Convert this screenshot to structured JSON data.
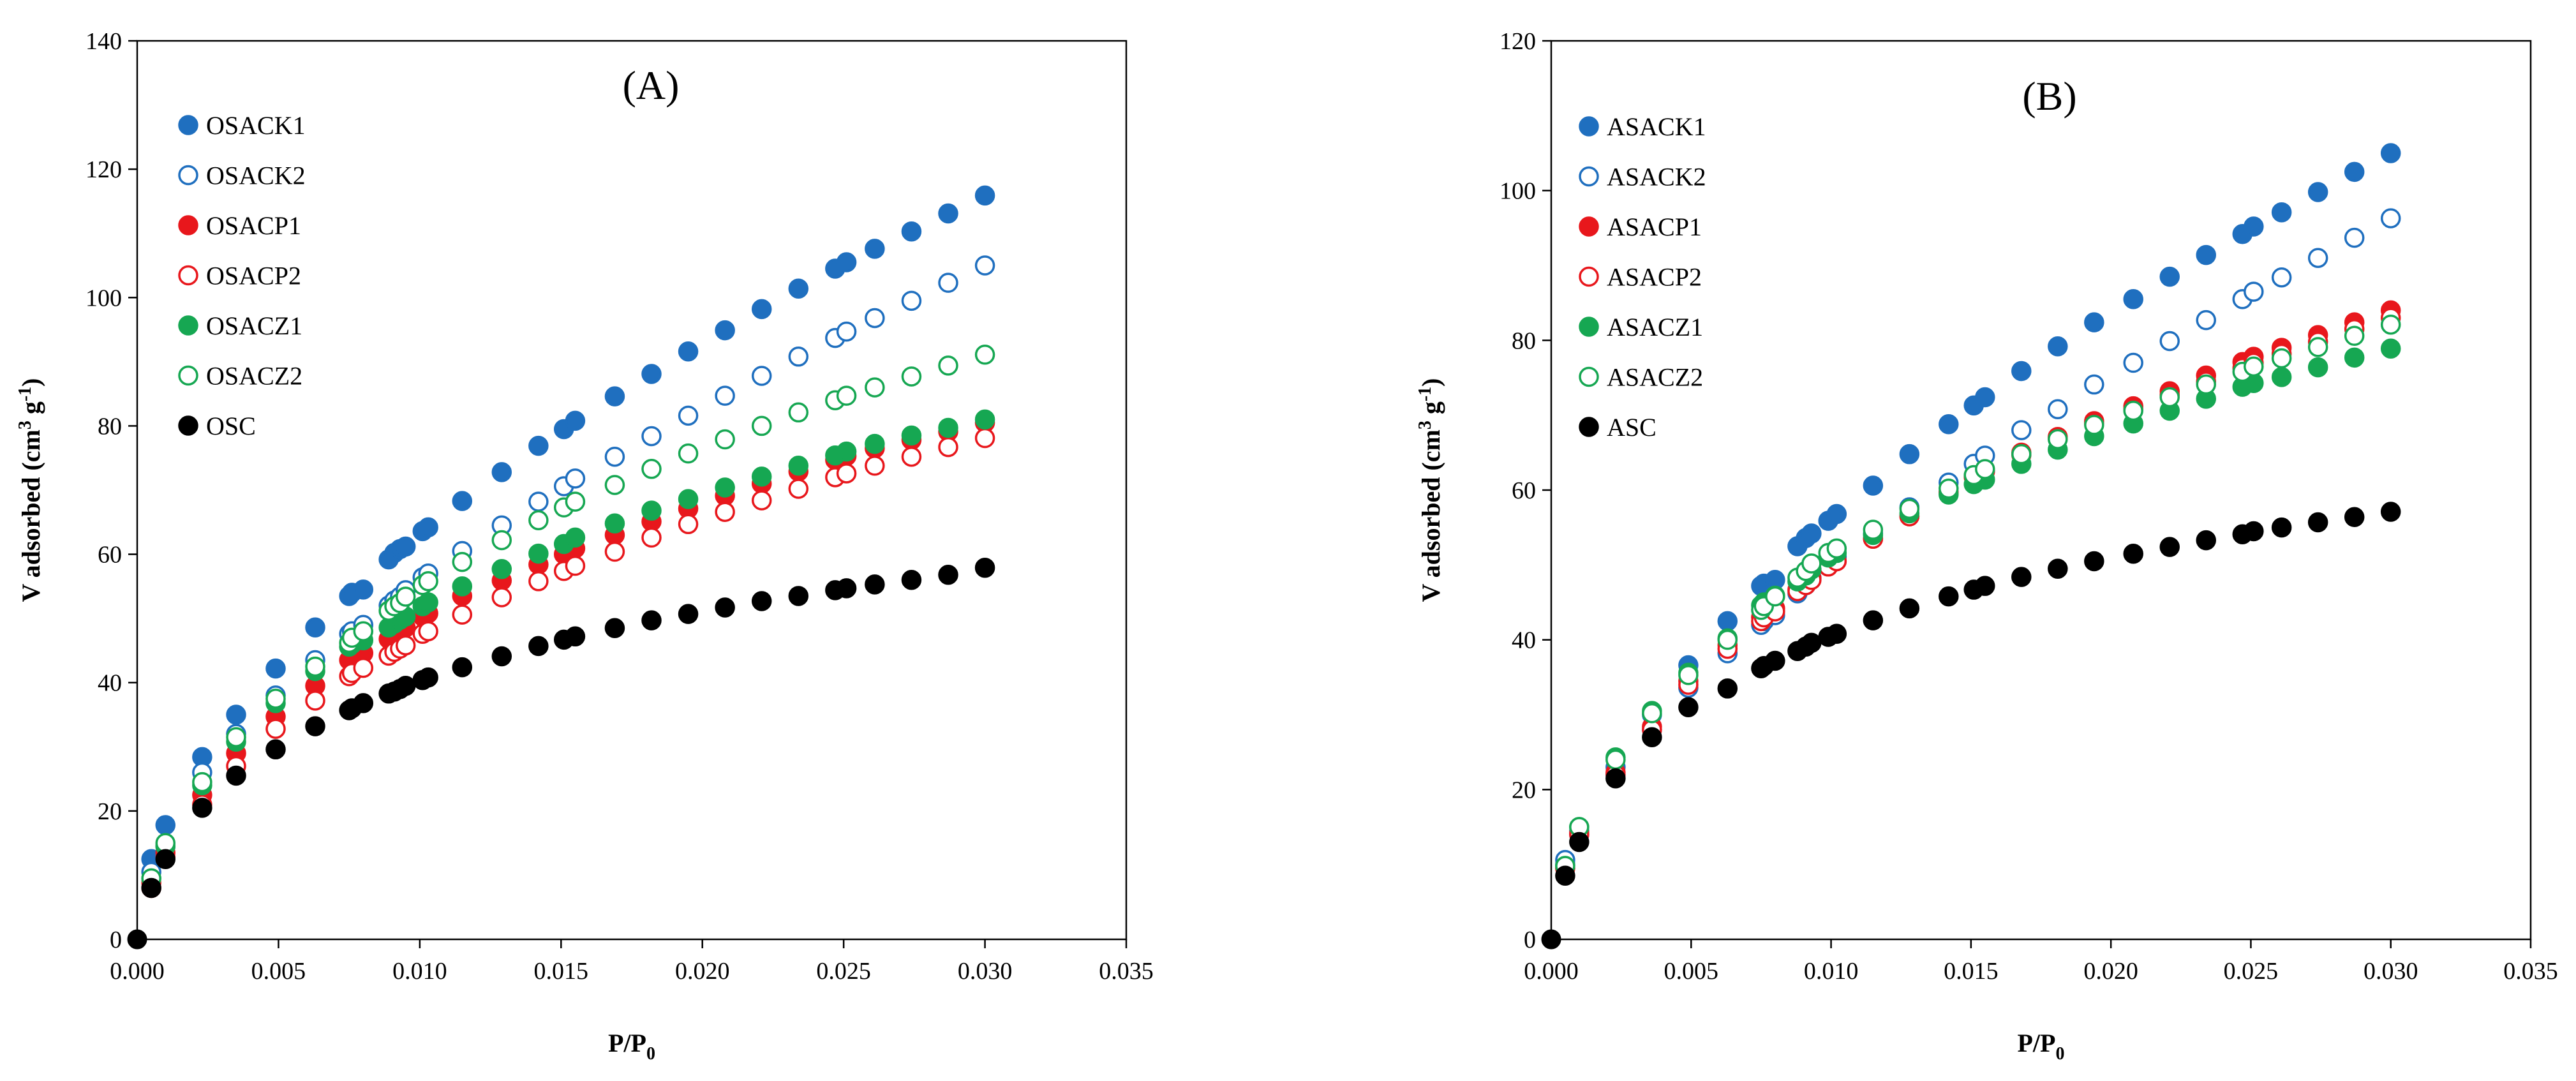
{
  "chart_data": [
    {
      "type": "scatter",
      "panel_label": "(A)",
      "xlabel": "P/P",
      "xlabel_sub": "0",
      "ylabel": "V adsorbed (cm",
      "ylabel_sup": "3",
      "ylabel_mid": " g",
      "ylabel_sup2": "-1",
      "ylabel_end": ")",
      "xlim": [
        0,
        0.035
      ],
      "ylim": [
        0,
        140
      ],
      "xticks": [
        0,
        0.005,
        0.01,
        0.015,
        0.02,
        0.025,
        0.03,
        0.035
      ],
      "xtick_labels": [
        "0.000",
        "0.005",
        "0.010",
        "0.015",
        "0.020",
        "0.025",
        "0.030",
        "0.035"
      ],
      "yticks": [
        0,
        20,
        40,
        60,
        80,
        100,
        120,
        140
      ],
      "ytick_labels": [
        "0",
        "20",
        "40",
        "60",
        "80",
        "100",
        "120",
        "140"
      ],
      "grid": false,
      "legend_position": "top-left",
      "x": [
        0.0005,
        0.001,
        0.0023,
        0.0035,
        0.0049,
        0.0063,
        0.0075,
        0.0076,
        0.008,
        0.0089,
        0.0091,
        0.0093,
        0.0095,
        0.0101,
        0.0103,
        0.0115,
        0.0129,
        0.0142,
        0.0151,
        0.0155,
        0.0169,
        0.0182,
        0.0195,
        0.0208,
        0.0221,
        0.0234,
        0.0247,
        0.0251,
        0.0261,
        0.0274,
        0.0287,
        0.03
      ],
      "series": [
        {
          "name": "OSACK1",
          "color": "#1f6fbf",
          "filled": true,
          "y": [
            12.5,
            17.8,
            28.4,
            35.0,
            42.2,
            48.6,
            53.5,
            54.0,
            54.5,
            59.2,
            60.2,
            60.8,
            61.2,
            63.6,
            64.2,
            68.3,
            72.8,
            76.9,
            79.5,
            80.8,
            84.6,
            88.1,
            91.6,
            94.9,
            98.2,
            101.4,
            104.5,
            105.5,
            107.6,
            110.3,
            113.1,
            115.9
          ]
        },
        {
          "name": "OSACK2",
          "color": "#1f6fbf",
          "filled": false,
          "y": [
            10.5,
            14.5,
            26.0,
            32.0,
            38.0,
            43.5,
            47.6,
            48.0,
            49.0,
            52.0,
            52.8,
            53.4,
            54.4,
            56.4,
            57.0,
            60.5,
            64.5,
            68.2,
            70.6,
            71.8,
            75.2,
            78.4,
            81.6,
            84.7,
            87.8,
            90.8,
            93.7,
            94.7,
            96.8,
            99.5,
            102.3,
            105.0
          ]
        },
        {
          "name": "OSACP1",
          "color": "#e8171c",
          "filled": true,
          "y": [
            8.8,
            13.5,
            22.5,
            29.0,
            34.7,
            39.5,
            43.5,
            44.0,
            44.6,
            46.8,
            47.4,
            48.0,
            48.6,
            50.3,
            50.8,
            53.5,
            55.9,
            58.4,
            60.0,
            60.9,
            63.0,
            65.1,
            67.1,
            69.1,
            71.0,
            72.9,
            74.7,
            75.3,
            76.5,
            77.8,
            79.1,
            80.5
          ]
        },
        {
          "name": "OSACP2",
          "color": "#e8171c",
          "filled": false,
          "y": [
            8.0,
            12.8,
            21.0,
            27.0,
            32.8,
            37.2,
            41.0,
            41.5,
            42.3,
            44.2,
            44.8,
            45.3,
            45.8,
            47.6,
            48.0,
            50.6,
            53.3,
            55.8,
            57.4,
            58.2,
            60.4,
            62.6,
            64.7,
            66.6,
            68.4,
            70.2,
            72.0,
            72.6,
            73.8,
            75.2,
            76.7,
            78.1
          ]
        },
        {
          "name": "OSACZ1",
          "color": "#16a752",
          "filled": true,
          "y": [
            9.5,
            14.5,
            24.0,
            30.8,
            36.8,
            41.8,
            45.6,
            46.0,
            46.6,
            48.6,
            49.2,
            49.8,
            50.3,
            51.9,
            52.5,
            55.0,
            57.7,
            60.1,
            61.6,
            62.6,
            64.8,
            66.8,
            68.6,
            70.4,
            72.1,
            73.8,
            75.4,
            76.0,
            77.2,
            78.5,
            79.7,
            81.0
          ]
        },
        {
          "name": "OSACZ2",
          "color": "#16a752",
          "filled": false,
          "y": [
            9.5,
            15.0,
            24.5,
            31.5,
            37.5,
            42.5,
            46.2,
            47.0,
            48.0,
            51.2,
            51.9,
            52.4,
            53.4,
            55.2,
            55.8,
            58.8,
            62.2,
            65.3,
            67.3,
            68.2,
            70.8,
            73.3,
            75.7,
            77.9,
            80.0,
            82.1,
            84.0,
            84.7,
            86.0,
            87.7,
            89.4,
            91.1
          ]
        },
        {
          "name": "OSC",
          "color": "#000000",
          "filled": true,
          "y": [
            8.0,
            12.5,
            20.5,
            25.5,
            29.6,
            33.2,
            35.7,
            36.0,
            36.8,
            38.3,
            38.6,
            39.0,
            39.5,
            40.4,
            40.8,
            42.4,
            44.1,
            45.7,
            46.7,
            47.2,
            48.5,
            49.7,
            50.7,
            51.7,
            52.7,
            53.5,
            54.4,
            54.7,
            55.3,
            56.0,
            56.8,
            57.9
          ]
        }
      ],
      "origin_point": {
        "x": 0,
        "y": 0
      }
    },
    {
      "type": "scatter",
      "panel_label": "(B)",
      "xlabel": "P/P",
      "xlabel_sub": "0",
      "ylabel": "V adsorbed (cm",
      "ylabel_sup": "3",
      "ylabel_mid": " g",
      "ylabel_sup2": "-1",
      "ylabel_end": ")",
      "xlim": [
        0,
        0.035
      ],
      "ylim": [
        0,
        120
      ],
      "xticks": [
        0,
        0.005,
        0.01,
        0.015,
        0.02,
        0.025,
        0.03,
        0.035
      ],
      "xtick_labels": [
        "0.000",
        "0.005",
        "0.010",
        "0.015",
        "0.020",
        "0.025",
        "0.030",
        "0.035"
      ],
      "yticks": [
        0,
        20,
        40,
        60,
        80,
        100,
        120
      ],
      "ytick_labels": [
        "0",
        "20",
        "40",
        "60",
        "80",
        "100",
        "120"
      ],
      "grid": false,
      "legend_position": "top-left",
      "x": [
        0.0005,
        0.001,
        0.0023,
        0.0036,
        0.0049,
        0.0063,
        0.0075,
        0.0076,
        0.008,
        0.0088,
        0.0091,
        0.0093,
        0.0099,
        0.0102,
        0.0115,
        0.0128,
        0.0142,
        0.0151,
        0.0155,
        0.0168,
        0.0181,
        0.0194,
        0.0208,
        0.0221,
        0.0234,
        0.0247,
        0.0251,
        0.0261,
        0.0274,
        0.0287,
        0.03
      ],
      "series": [
        {
          "name": "ASACK1",
          "color": "#1f6fbf",
          "filled": true,
          "y": [
            10.0,
            14.5,
            23.0,
            30.0,
            36.6,
            42.5,
            47.2,
            47.5,
            48.0,
            52.5,
            53.6,
            54.2,
            55.9,
            56.8,
            60.6,
            64.8,
            68.8,
            71.3,
            72.4,
            75.9,
            79.2,
            82.4,
            85.5,
            88.5,
            91.4,
            94.2,
            95.2,
            97.1,
            99.8,
            102.5,
            105.0
          ]
        },
        {
          "name": "ASACK2",
          "color": "#1f6fbf",
          "filled": false,
          "y": [
            10.6,
            14.0,
            22.0,
            28.0,
            33.6,
            38.2,
            42.0,
            42.5,
            43.3,
            46.2,
            47.3,
            48.3,
            50.4,
            51.1,
            54.2,
            57.7,
            61.0,
            63.5,
            64.6,
            68.0,
            70.8,
            74.1,
            77.0,
            79.9,
            82.7,
            85.5,
            86.5,
            88.4,
            91.0,
            93.7,
            96.3
          ]
        },
        {
          "name": "ASACP1",
          "color": "#e8171c",
          "filled": true,
          "y": [
            9.5,
            14.2,
            22.3,
            28.4,
            34.5,
            39.3,
            43.0,
            43.4,
            44.2,
            46.7,
            47.6,
            48.2,
            49.8,
            50.5,
            53.5,
            56.5,
            59.7,
            61.9,
            62.6,
            65.0,
            67.1,
            69.2,
            71.2,
            73.2,
            75.3,
            77.1,
            77.8,
            79.0,
            80.7,
            82.4,
            84.0
          ]
        },
        {
          "name": "ASACP2",
          "color": "#e8171c",
          "filled": false,
          "y": [
            9.5,
            14.0,
            22.0,
            28.0,
            34.0,
            38.8,
            42.5,
            43.0,
            43.8,
            46.5,
            47.3,
            48.0,
            49.8,
            50.5,
            53.5,
            56.5,
            59.6,
            61.7,
            62.5,
            64.7,
            66.9,
            68.9,
            70.8,
            72.7,
            74.5,
            76.3,
            77.0,
            78.2,
            79.8,
            81.5,
            83.0
          ]
        },
        {
          "name": "ASACZ1",
          "color": "#16a752",
          "filled": true,
          "y": [
            9.8,
            15.0,
            24.3,
            30.5,
            35.6,
            40.2,
            44.6,
            45.0,
            45.9,
            47.8,
            48.6,
            49.4,
            51.0,
            51.6,
            54.0,
            56.9,
            59.4,
            60.8,
            61.4,
            63.5,
            65.4,
            67.2,
            68.9,
            70.6,
            72.2,
            73.8,
            74.3,
            75.1,
            76.4,
            77.7,
            78.9
          ]
        },
        {
          "name": "ASACZ2",
          "color": "#16a752",
          "filled": false,
          "y": [
            9.8,
            15.0,
            24.0,
            30.2,
            35.3,
            40.0,
            44.0,
            44.5,
            45.8,
            48.3,
            49.2,
            50.2,
            51.6,
            52.2,
            54.7,
            57.5,
            60.2,
            62.0,
            62.8,
            64.8,
            66.8,
            68.7,
            70.6,
            72.4,
            74.1,
            75.8,
            76.5,
            77.6,
            79.1,
            80.6,
            82.1
          ]
        },
        {
          "name": "ASC",
          "color": "#000000",
          "filled": true,
          "y": [
            8.5,
            13.0,
            21.5,
            27.0,
            31.0,
            33.5,
            36.2,
            36.5,
            37.2,
            38.5,
            39.1,
            39.6,
            40.4,
            40.8,
            42.6,
            44.2,
            45.8,
            46.7,
            47.2,
            48.4,
            49.5,
            50.5,
            51.5,
            52.4,
            53.3,
            54.1,
            54.5,
            55.0,
            55.7,
            56.4,
            57.1
          ]
        }
      ],
      "origin_point": {
        "x": 0,
        "y": 0
      }
    }
  ]
}
